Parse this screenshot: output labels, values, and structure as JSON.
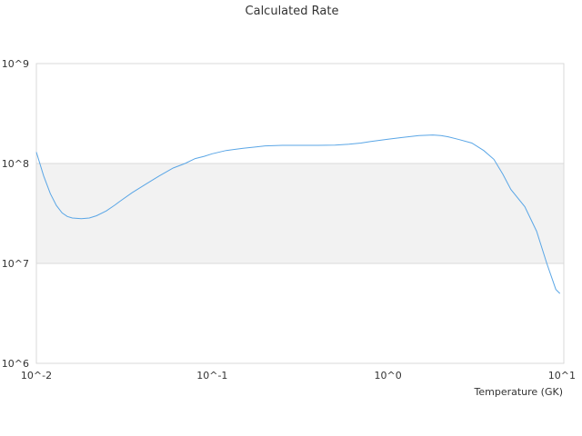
{
  "chart_data": {
    "type": "line",
    "title": "Calculated Rate",
    "xlabel": "Temperature (GK)",
    "ylabel": "",
    "x_scale": "log",
    "y_scale": "log",
    "xlim": [
      0.01,
      10
    ],
    "ylim": [
      1000000,
      1000000000
    ],
    "x_ticks": [
      {
        "value": 0.01,
        "label": "10^-2"
      },
      {
        "value": 0.1,
        "label": "10^-1"
      },
      {
        "value": 1,
        "label": "10^0"
      },
      {
        "value": 10,
        "label": "10^1"
      }
    ],
    "y_ticks": [
      {
        "value": 1000000,
        "label": "10^6"
      },
      {
        "value": 10000000,
        "label": "10^7"
      },
      {
        "value": 100000000,
        "label": "10^8"
      },
      {
        "value": 1000000000,
        "label": "10^9"
      }
    ],
    "shaded_band": [
      10000000,
      100000000
    ],
    "colors": {
      "line": "#5aa6e6",
      "band": "#f2f2f2",
      "grid": "#d9d9d9"
    },
    "series": [
      {
        "x": [
          0.01,
          0.011,
          0.012,
          0.013,
          0.014,
          0.015,
          0.016,
          0.018,
          0.02,
          0.022,
          0.025,
          0.028,
          0.03,
          0.035,
          0.04,
          0.045,
          0.05,
          0.06,
          0.07,
          0.08,
          0.09,
          0.1,
          0.12,
          0.15,
          0.18,
          0.2,
          0.25,
          0.3,
          0.4,
          0.5,
          0.6,
          0.7,
          0.8,
          1.0,
          1.2,
          1.5,
          1.8,
          2.0,
          2.2,
          2.5,
          3.0,
          3.5,
          4.0,
          4.5,
          5.0,
          6.0,
          7.0,
          8.0,
          9.0,
          9.5
        ],
        "y": [
          130000000,
          75000000,
          50000000,
          38000000,
          32000000,
          29500000,
          28500000,
          28000000,
          28500000,
          30000000,
          33500000,
          38500000,
          42000000,
          51000000,
          59000000,
          67000000,
          75000000,
          90000000,
          100000000,
          112000000,
          118000000,
          125000000,
          135000000,
          142000000,
          147000000,
          150000000,
          152000000,
          152000000,
          152000000,
          153000000,
          156000000,
          160000000,
          166000000,
          175000000,
          182000000,
          190000000,
          193000000,
          190000000,
          185000000,
          175000000,
          160000000,
          135000000,
          110000000,
          78000000,
          55000000,
          37000000,
          21000000,
          10000000,
          5500000,
          5000000
        ]
      }
    ]
  }
}
